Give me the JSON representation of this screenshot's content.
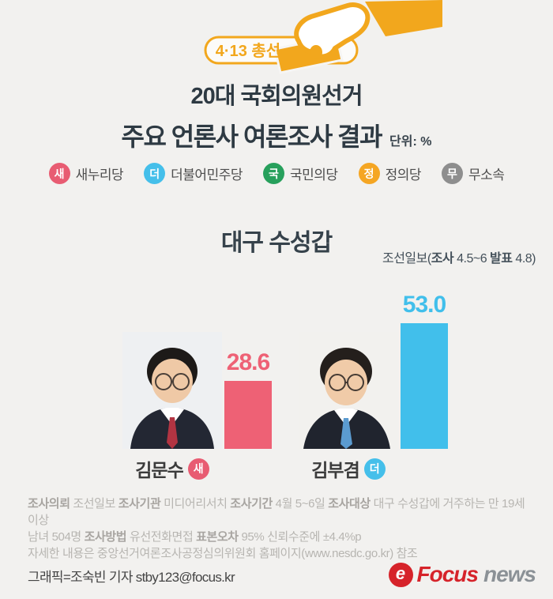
{
  "header": {
    "badge_label": "4·13 총선",
    "accent_color": "#f2a71d"
  },
  "title": {
    "line1": "20대 국회의원선거",
    "line2": "주요 언론사 여론조사 결과",
    "unit": "단위: %"
  },
  "legend": {
    "items": [
      {
        "abbr": "새",
        "label": "새누리당",
        "color": "#e85c72"
      },
      {
        "abbr": "더",
        "label": "더불어민주당",
        "color": "#45bfea"
      },
      {
        "abbr": "국",
        "label": "국민의당",
        "color": "#27a05c"
      },
      {
        "abbr": "정",
        "label": "정의당",
        "color": "#f5a623"
      },
      {
        "abbr": "무",
        "label": "무소속",
        "color": "#8e8e8e"
      }
    ]
  },
  "section": {
    "heading": "대구 수성갑",
    "source_segments": [
      {
        "text": "조선일보(",
        "bold": false
      },
      {
        "text": "조사",
        "bold": true
      },
      {
        "text": " 4.5~6 ",
        "bold": false
      },
      {
        "text": "발표",
        "bold": true
      },
      {
        "text": " 4.8)",
        "bold": false
      }
    ]
  },
  "candidates": [
    {
      "name": "김문수",
      "party_abbr": "새",
      "party_color": "#e85c72",
      "value": "28.6",
      "bar_color": "#ee6175",
      "tie_color": "#b23442",
      "suit_color": "#232733",
      "photo_bg": "#eef0f2"
    },
    {
      "name": "김부겸",
      "party_abbr": "더",
      "party_color": "#45bfea",
      "value": "53.0",
      "bar_color": "#41bfeb",
      "tie_color": "#5b9bd0",
      "suit_color": "#20242e",
      "photo_bg": "#f2f1ee"
    }
  ],
  "survey": {
    "line1": [
      {
        "text": "조사의뢰",
        "bold": true
      },
      {
        "text": " 조선일보 ",
        "bold": false
      },
      {
        "text": "조사기관",
        "bold": true
      },
      {
        "text": " 미디어리서치 ",
        "bold": false
      },
      {
        "text": "조사기간",
        "bold": true
      },
      {
        "text": " 4월 5~6일 ",
        "bold": false
      },
      {
        "text": "조사대상",
        "bold": true
      },
      {
        "text": " 대구 수성갑에 거주하는 만 19세 이상",
        "bold": false
      }
    ],
    "line2": [
      {
        "text": "남녀 504명 ",
        "bold": false
      },
      {
        "text": "조사방법",
        "bold": true
      },
      {
        "text": " 유선전화면접 ",
        "bold": false
      },
      {
        "text": "표본오차",
        "bold": true
      },
      {
        "text": " 95% 신뢰수준에 ±4.4%p",
        "bold": false
      }
    ],
    "line3": [
      {
        "text": "자세한 내용은 중앙선거여론조사공정심의위원회 홈페이지(www.nesdc.go.kr) 참조",
        "bold": false
      }
    ]
  },
  "footer": {
    "credit": "그래픽=조숙빈 기자 stby123@focus.kr",
    "logo_mark": "e",
    "logo_focus": "Focus",
    "logo_news": "news"
  },
  "chart_data": {
    "type": "bar",
    "title": "대구 수성갑",
    "subtitle": "20대 국회의원선거 주요 언론사 여론조사 결과",
    "source": "조선일보(조사 4.5~6 발표 4.8)",
    "unit": "%",
    "categories": [
      "김문수",
      "김부겸"
    ],
    "series": [
      {
        "name": "김문수 (새누리당)",
        "values": [
          28.6,
          null
        ]
      },
      {
        "name": "김부겸 (더불어민주당)",
        "values": [
          null,
          53.0
        ]
      }
    ],
    "values": [
      28.6,
      53.0
    ],
    "bar_colors": [
      "#ee6175",
      "#41bfeb"
    ],
    "ylim": [
      0,
      60
    ],
    "grid": false,
    "legend_position": "top",
    "annotations": [
      "새누리당 새",
      "더불어민주당 더",
      "국민의당 국",
      "정의당 정",
      "무소속 무"
    ]
  }
}
